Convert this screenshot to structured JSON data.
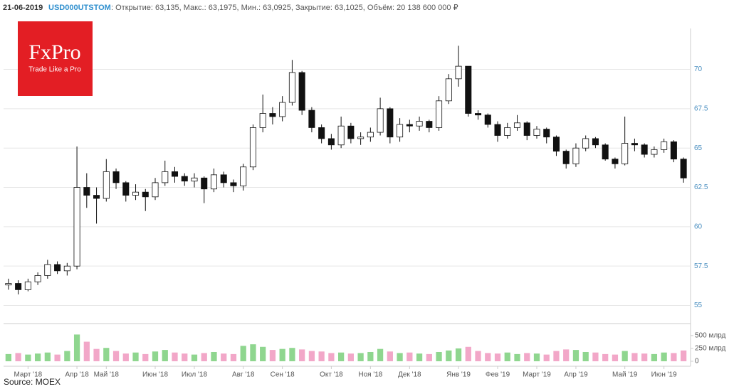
{
  "chart_data": {
    "type": "candlestick",
    "header": {
      "date": "21-06-2019",
      "ticker": "USD000UTSTOM",
      "summary": ": Открытие: 63,135, Макс.: 63,1975, Мин.: 63,0925, Закрытие: 63,1025, Объём: 20 138 600 000 ₽"
    },
    "logo": {
      "brand": "FxPro",
      "slogan": "Trade Like a Pro",
      "color": "#e31e24"
    },
    "source": "Source: MOEX",
    "categories": [
      null,
      null,
      "Март '18",
      null,
      null,
      null,
      null,
      "Апр '18",
      null,
      null,
      "Май '18",
      null,
      null,
      null,
      null,
      "Июн '18",
      null,
      null,
      null,
      "Июл '18",
      null,
      null,
      null,
      null,
      "Авг '18",
      null,
      null,
      null,
      "Сен '18",
      null,
      null,
      null,
      null,
      "Окт '18",
      null,
      null,
      null,
      "Ноя '18",
      null,
      null,
      null,
      "Дек '18",
      null,
      null,
      null,
      null,
      "Янв '19",
      null,
      null,
      null,
      "Фев '19",
      null,
      null,
      null,
      "Март '19",
      null,
      null,
      null,
      "Апр '19",
      null,
      null,
      null,
      null,
      "Май '19",
      null,
      null,
      null,
      "Июн '19",
      null,
      null
    ],
    "open": [
      56.3,
      56.4,
      56.0,
      56.5,
      56.9,
      57.6,
      57.2,
      57.5,
      62.5,
      62.0,
      61.8,
      63.5,
      62.8,
      62.0,
      62.2,
      61.9,
      62.8,
      63.5,
      63.2,
      62.9,
      63.1,
      62.4,
      63.3,
      62.8,
      62.6,
      63.8,
      66.3,
      67.2,
      67.0,
      67.9,
      69.8,
      67.4,
      66.3,
      65.6,
      65.2,
      66.4,
      65.6,
      65.7,
      66.0,
      67.5,
      65.7,
      66.5,
      66.4,
      66.7,
      66.3,
      68.0,
      69.4,
      70.2,
      67.2,
      67.1,
      66.5,
      65.8,
      66.3,
      66.6,
      65.8,
      66.2,
      65.7,
      64.8,
      64.0,
      65.0,
      65.6,
      65.2,
      64.3,
      64.0,
      65.3,
      65.2,
      64.6,
      64.9,
      65.4,
      64.3
    ],
    "high": [
      56.7,
      56.6,
      56.7,
      57.1,
      57.9,
      57.8,
      57.7,
      65.1,
      63.4,
      62.5,
      64.3,
      63.7,
      62.9,
      62.7,
      62.4,
      63.1,
      64.2,
      63.8,
      63.4,
      63.4,
      63.2,
      63.7,
      63.5,
      63.0,
      64.0,
      66.5,
      68.4,
      67.6,
      68.3,
      70.6,
      69.9,
      67.6,
      66.5,
      65.9,
      67.0,
      66.6,
      66.0,
      66.3,
      68.2,
      67.6,
      66.9,
      66.8,
      67.0,
      66.8,
      68.3,
      69.7,
      71.5,
      70.2,
      67.4,
      67.2,
      66.7,
      66.6,
      67.1,
      66.7,
      66.4,
      66.3,
      65.8,
      64.9,
      65.3,
      65.8,
      65.7,
      65.3,
      64.4,
      67.0,
      65.6,
      65.3,
      65.1,
      65.6,
      65.5,
      64.4
    ],
    "low": [
      56.0,
      55.7,
      55.9,
      56.3,
      56.7,
      57.0,
      56.9,
      57.3,
      61.2,
      60.2,
      61.6,
      62.4,
      61.6,
      61.7,
      61.0,
      61.7,
      62.6,
      62.8,
      62.6,
      62.5,
      61.5,
      62.2,
      62.5,
      62.2,
      62.3,
      63.6,
      66.0,
      66.5,
      66.7,
      67.7,
      67.1,
      66.0,
      65.3,
      64.9,
      65.0,
      65.3,
      65.2,
      65.4,
      65.8,
      65.3,
      65.4,
      66.0,
      66.1,
      66.0,
      66.1,
      67.8,
      68.9,
      67.0,
      66.8,
      66.3,
      65.4,
      65.6,
      66.1,
      65.5,
      65.6,
      65.3,
      64.5,
      63.7,
      63.8,
      64.8,
      65.0,
      64.2,
      63.7,
      63.9,
      64.8,
      64.4,
      64.4,
      64.7,
      64.1,
      62.8
    ],
    "close": [
      56.4,
      56.0,
      56.5,
      56.9,
      57.6,
      57.2,
      57.5,
      62.5,
      62.0,
      61.8,
      63.5,
      62.8,
      62.0,
      62.2,
      61.9,
      62.8,
      63.5,
      63.2,
      62.9,
      63.1,
      62.4,
      63.3,
      62.8,
      62.6,
      63.8,
      66.3,
      67.2,
      67.0,
      67.9,
      69.8,
      67.4,
      66.3,
      65.6,
      65.2,
      66.4,
      65.6,
      65.7,
      66.0,
      67.5,
      65.7,
      66.5,
      66.4,
      66.7,
      66.3,
      68.0,
      69.4,
      70.2,
      67.2,
      67.1,
      66.5,
      65.8,
      66.3,
      66.6,
      65.8,
      66.2,
      65.7,
      64.8,
      64.0,
      65.0,
      65.6,
      65.2,
      64.3,
      64.0,
      65.3,
      65.2,
      64.6,
      64.9,
      65.4,
      64.3,
      63.1
    ],
    "volume": [
      140,
      160,
      130,
      150,
      170,
      130,
      200,
      520,
      380,
      240,
      260,
      200,
      150,
      170,
      140,
      190,
      220,
      170,
      150,
      130,
      160,
      180,
      150,
      140,
      300,
      330,
      280,
      220,
      240,
      260,
      230,
      200,
      190,
      160,
      170,
      150,
      160,
      180,
      240,
      190,
      160,
      170,
      150,
      140,
      180,
      210,
      250,
      280,
      200,
      160,
      150,
      170,
      140,
      160,
      150,
      130,
      200,
      230,
      220,
      180,
      170,
      140,
      130,
      200,
      160,
      150,
      140,
      170,
      160,
      210
    ],
    "up_color": "#ffffff",
    "down_color": "#111111",
    "volume_up_color": "#8fd68f",
    "volume_down_color": "#f2a7c8",
    "ylim": [
      54.3,
      72.6
    ],
    "yticks": [
      55,
      57.5,
      60,
      62.5,
      65,
      67.5,
      70
    ],
    "volume_ylim": [
      0,
      650
    ],
    "volume_yticks": [
      0,
      {
        "value": 250,
        "label": "250 млрд"
      },
      {
        "value": 500,
        "label": "500 млрд"
      }
    ],
    "grid": true
  }
}
